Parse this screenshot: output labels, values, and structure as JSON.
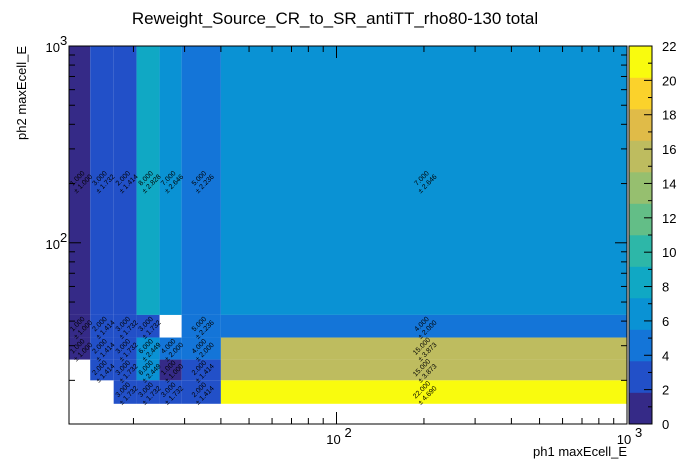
{
  "chart_data": {
    "type": "heatmap",
    "title": "Reweight_Source_CR_to_SR_antiTT_rho80-130 total",
    "xlabel": "ph1 maxEcell_E",
    "ylabel": "ph2 maxEcell_E",
    "x_scale": "log",
    "y_scale": "log",
    "xlim": [
      12,
      1000
    ],
    "ylim": [
      12,
      1000
    ],
    "x_ticks": [
      {
        "value": 100,
        "base": "10",
        "exp": "2"
      },
      {
        "value": 1000,
        "base": "10",
        "exp": "3"
      }
    ],
    "y_ticks": [
      {
        "value": 100,
        "base": "10",
        "exp": "2"
      },
      {
        "value": 1000,
        "base": "10",
        "exp": "3"
      }
    ],
    "x_edges": [
      12,
      14.2,
      17.1,
      20.5,
      24.6,
      29.3,
      40,
      1000
    ],
    "y_edges": [
      12,
      15.2,
      20,
      25.5,
      33,
      43,
      1000
    ],
    "z_range": [
      0,
      22
    ],
    "colorbar_ticks": [
      0,
      2,
      4,
      6,
      8,
      10,
      12,
      14,
      16,
      18,
      20,
      22
    ],
    "cells": [
      {
        "ix": 0,
        "iy": 5,
        "value": 1,
        "label": "1.000",
        "err": "± 1.000"
      },
      {
        "ix": 1,
        "iy": 5,
        "value": 3,
        "label": "3.000",
        "err": "± 1.732"
      },
      {
        "ix": 2,
        "iy": 5,
        "value": 2,
        "label": "2.000",
        "err": "± 1.414"
      },
      {
        "ix": 3,
        "iy": 5,
        "value": 8,
        "label": "8.000",
        "err": "± 2.828"
      },
      {
        "ix": 4,
        "iy": 5,
        "value": 7,
        "label": "7.000",
        "err": "± 2.646"
      },
      {
        "ix": 5,
        "iy": 5,
        "value": 5,
        "label": "5.000",
        "err": "± 2.236"
      },
      {
        "ix": 6,
        "iy": 5,
        "value": 7,
        "label": "7.000",
        "err": "± 2.646"
      },
      {
        "ix": 0,
        "iy": 4,
        "value": 1,
        "label": "1.000",
        "err": "± 1.000"
      },
      {
        "ix": 1,
        "iy": 4,
        "value": 2,
        "label": "2.000",
        "err": "± 1.414"
      },
      {
        "ix": 2,
        "iy": 4,
        "value": 3,
        "label": "3.000",
        "err": "± 1.732"
      },
      {
        "ix": 3,
        "iy": 4,
        "value": 3,
        "label": "3.000",
        "err": "± 1.732"
      },
      {
        "ix": 5,
        "iy": 4,
        "value": 5,
        "label": "5.000",
        "err": "± 2.236"
      },
      {
        "ix": 6,
        "iy": 4,
        "value": 4,
        "label": "4.000",
        "err": "± 2.000"
      },
      {
        "ix": 0,
        "iy": 3,
        "value": 1,
        "label": "1.000",
        "err": "± 1.000"
      },
      {
        "ix": 1,
        "iy": 3,
        "value": 2,
        "label": "2.000",
        "err": "± 1.414"
      },
      {
        "ix": 2,
        "iy": 3,
        "value": 3,
        "label": "3.000",
        "err": "± 1.732"
      },
      {
        "ix": 3,
        "iy": 3,
        "value": 6,
        "label": "6.000",
        "err": "± 2.449"
      },
      {
        "ix": 4,
        "iy": 3,
        "value": 4,
        "label": "4.000",
        "err": "± 2.000"
      },
      {
        "ix": 5,
        "iy": 3,
        "value": 4,
        "label": "4.000",
        "err": "± 2.000"
      },
      {
        "ix": 6,
        "iy": 3,
        "value": 15,
        "label": "15.000",
        "err": "± 3.873"
      },
      {
        "ix": 1,
        "iy": 2,
        "value": 2,
        "label": "2.000",
        "err": "± 1.414"
      },
      {
        "ix": 2,
        "iy": 2,
        "value": 3,
        "label": "3.000",
        "err": "± 1.732"
      },
      {
        "ix": 3,
        "iy": 2,
        "value": 6,
        "label": "6.000",
        "err": "± 2.449"
      },
      {
        "ix": 4,
        "iy": 2,
        "value": 1,
        "label": "1.000",
        "err": "± 1.000"
      },
      {
        "ix": 5,
        "iy": 2,
        "value": 2,
        "label": "2.000",
        "err": "± 1.414"
      },
      {
        "ix": 6,
        "iy": 2,
        "value": 15,
        "label": "15.000",
        "err": "± 3.873"
      },
      {
        "ix": 2,
        "iy": 1,
        "value": 3,
        "label": "3.000",
        "err": "± 1.732"
      },
      {
        "ix": 3,
        "iy": 1,
        "value": 3,
        "label": "3.000",
        "err": "± 1.732"
      },
      {
        "ix": 4,
        "iy": 1,
        "value": 3,
        "label": "3.000",
        "err": "± 1.732"
      },
      {
        "ix": 5,
        "iy": 1,
        "value": 2,
        "label": "2.000",
        "err": "± 1.414"
      },
      {
        "ix": 6,
        "iy": 1,
        "value": 22,
        "label": "22.000",
        "err": "± 4.690"
      }
    ],
    "grid": false,
    "legend": "colorbar-right",
    "palette": [
      "#352a87",
      "#2250c8",
      "#1475d8",
      "#0a92d4",
      "#10a8c4",
      "#2db7a8",
      "#63be87",
      "#96bf6f",
      "#bebc5f",
      "#e0bb48",
      "#fbd22b",
      "#f9fb0e"
    ]
  }
}
